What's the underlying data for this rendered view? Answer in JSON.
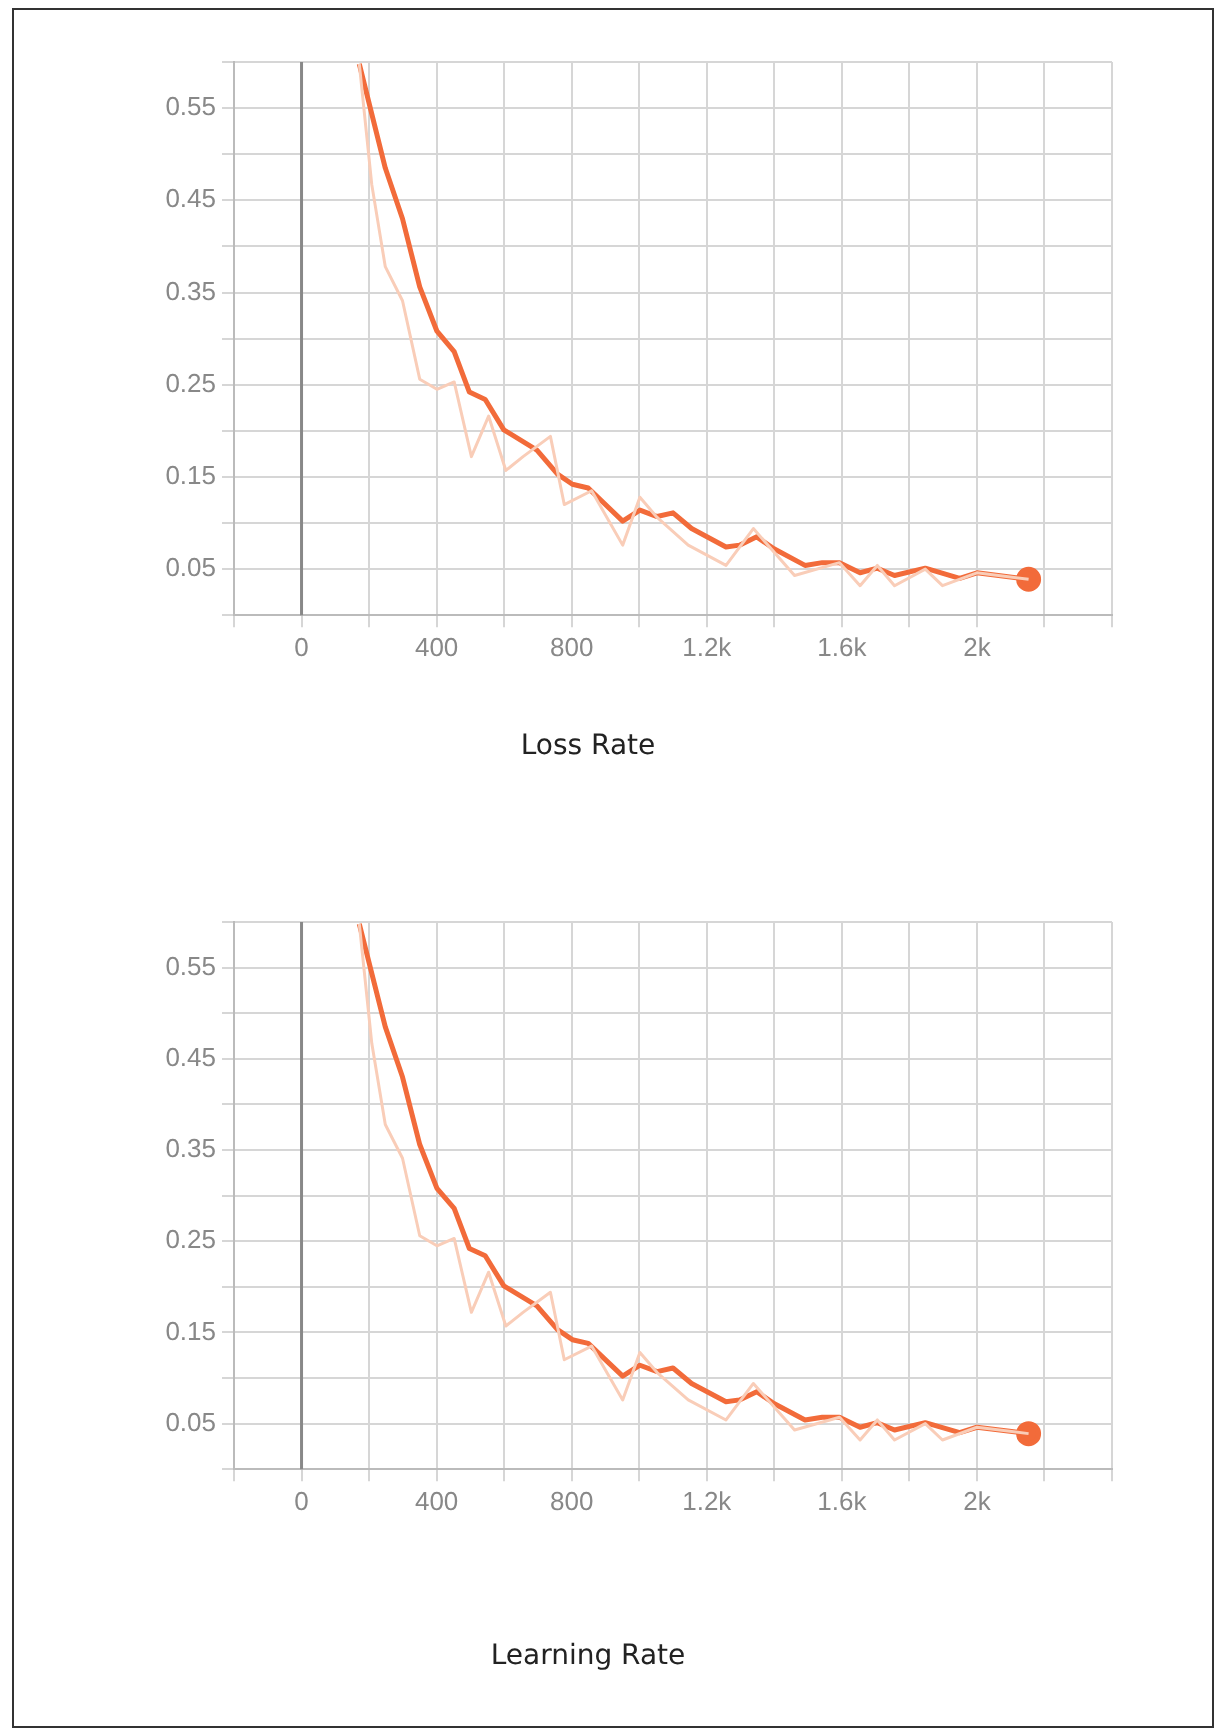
{
  "chart_data": [
    {
      "type": "line",
      "title": "Loss Rate",
      "xlim": [
        -200,
        2400
      ],
      "ylim": [
        0,
        0.6
      ],
      "xticks": [
        {
          "value": -200,
          "label": null
        },
        0,
        {
          "value": 200,
          "label": null
        },
        400,
        {
          "value": 600,
          "label": null
        },
        800,
        {
          "value": 1000,
          "label": null
        },
        {
          "value": 1200,
          "label": "1.2k"
        },
        {
          "value": 1400,
          "label": null
        },
        {
          "value": 1600,
          "label": "1.6k"
        },
        {
          "value": 1800,
          "label": null
        },
        {
          "value": 2000,
          "label": "2k"
        },
        {
          "value": 2200,
          "label": null
        },
        {
          "value": 2400,
          "label": null
        }
      ],
      "yticks": [
        {
          "value": 0,
          "label": null
        },
        0.05,
        {
          "value": 0.1,
          "label": null
        },
        0.15,
        {
          "value": 0.2,
          "label": null
        },
        0.25,
        {
          "value": 0.3,
          "label": null
        },
        0.35,
        {
          "value": 0.4,
          "label": null
        },
        0.45,
        {
          "value": 0.5,
          "label": null
        },
        0.55,
        {
          "value": 0.6,
          "label": null
        }
      ],
      "grid": true,
      "legend": false,
      "ref_lines": [
        {
          "axis": "x",
          "value": 0,
          "color": "#888888"
        }
      ],
      "series": [
        {
          "color": "#f9cdb8",
          "x": [
            171,
            208,
            248,
            299,
            350,
            401,
            452,
            503,
            554,
            605,
            656,
            737,
            778,
            859,
            951,
            1002,
            1053,
            1145,
            1257,
            1338,
            1460,
            1593,
            1654,
            1705,
            1756,
            1847,
            1898,
            2000,
            2153
          ],
          "values": [
            0.598,
            0.467,
            0.378,
            0.341,
            0.256,
            0.245,
            0.253,
            0.172,
            0.216,
            0.157,
            0.172,
            0.194,
            0.12,
            0.135,
            0.076,
            0.128,
            0.106,
            0.076,
            0.054,
            0.094,
            0.043,
            0.057,
            0.032,
            0.054,
            0.032,
            0.05,
            0.032,
            0.046,
            0.039
          ]
        },
        {
          "color": "#f26b3a",
          "x": [
            171,
            248,
            299,
            350,
            401,
            452,
            497,
            544,
            599,
            697,
            758,
            802,
            849,
            951,
            1002,
            1053,
            1100,
            1155,
            1257,
            1297,
            1348,
            1399,
            1491,
            1542,
            1593,
            1654,
            1705,
            1756,
            1847,
            1949,
            2000,
            2153
          ],
          "values": [
            0.598,
            0.485,
            0.43,
            0.356,
            0.308,
            0.286,
            0.242,
            0.234,
            0.201,
            0.179,
            0.153,
            0.142,
            0.138,
            0.102,
            0.114,
            0.107,
            0.111,
            0.094,
            0.074,
            0.076,
            0.085,
            0.072,
            0.054,
            0.057,
            0.057,
            0.046,
            0.051,
            0.043,
            0.051,
            0.04,
            0.046,
            0.039
          ]
        }
      ]
    },
    {
      "type": "line",
      "title": "Learning Rate",
      "xlim": [
        -200,
        2400
      ],
      "ylim": [
        0,
        0.6
      ],
      "xticks": [
        {
          "value": -200,
          "label": null
        },
        0,
        {
          "value": 200,
          "label": null
        },
        400,
        {
          "value": 600,
          "label": null
        },
        800,
        {
          "value": 1000,
          "label": null
        },
        {
          "value": 1200,
          "label": "1.2k"
        },
        {
          "value": 1400,
          "label": null
        },
        {
          "value": 1600,
          "label": "1.6k"
        },
        {
          "value": 1800,
          "label": null
        },
        {
          "value": 2000,
          "label": "2k"
        },
        {
          "value": 2200,
          "label": null
        },
        {
          "value": 2400,
          "label": null
        }
      ],
      "yticks": [
        {
          "value": 0,
          "label": null
        },
        0.05,
        {
          "value": 0.1,
          "label": null
        },
        0.15,
        {
          "value": 0.2,
          "label": null
        },
        0.25,
        {
          "value": 0.3,
          "label": null
        },
        0.35,
        {
          "value": 0.4,
          "label": null
        },
        0.45,
        {
          "value": 0.5,
          "label": null
        },
        0.55,
        {
          "value": 0.6,
          "label": null
        }
      ],
      "grid": true,
      "legend": false,
      "ref_lines": [
        {
          "axis": "x",
          "value": 0,
          "color": "#888888"
        }
      ],
      "series": [
        {
          "color": "#f9cdb8",
          "x": [
            171,
            208,
            248,
            299,
            350,
            401,
            452,
            503,
            554,
            605,
            656,
            737,
            778,
            859,
            951,
            1002,
            1053,
            1145,
            1257,
            1338,
            1460,
            1593,
            1654,
            1705,
            1756,
            1847,
            1898,
            2000,
            2153
          ],
          "values": [
            0.598,
            0.467,
            0.378,
            0.341,
            0.256,
            0.245,
            0.253,
            0.172,
            0.216,
            0.157,
            0.172,
            0.194,
            0.12,
            0.135,
            0.076,
            0.128,
            0.106,
            0.076,
            0.054,
            0.094,
            0.043,
            0.057,
            0.032,
            0.054,
            0.032,
            0.05,
            0.032,
            0.046,
            0.039
          ]
        },
        {
          "color": "#f26b3a",
          "x": [
            171,
            248,
            299,
            350,
            401,
            452,
            497,
            544,
            599,
            697,
            758,
            802,
            849,
            951,
            1002,
            1053,
            1100,
            1155,
            1257,
            1297,
            1348,
            1399,
            1491,
            1542,
            1593,
            1654,
            1705,
            1756,
            1847,
            1949,
            2000,
            2153
          ],
          "values": [
            0.598,
            0.485,
            0.43,
            0.356,
            0.308,
            0.286,
            0.242,
            0.234,
            0.201,
            0.179,
            0.153,
            0.142,
            0.138,
            0.102,
            0.114,
            0.107,
            0.111,
            0.094,
            0.074,
            0.076,
            0.085,
            0.072,
            0.054,
            0.057,
            0.057,
            0.046,
            0.051,
            0.043,
            0.051,
            0.04,
            0.046,
            0.039
          ]
        }
      ]
    }
  ]
}
